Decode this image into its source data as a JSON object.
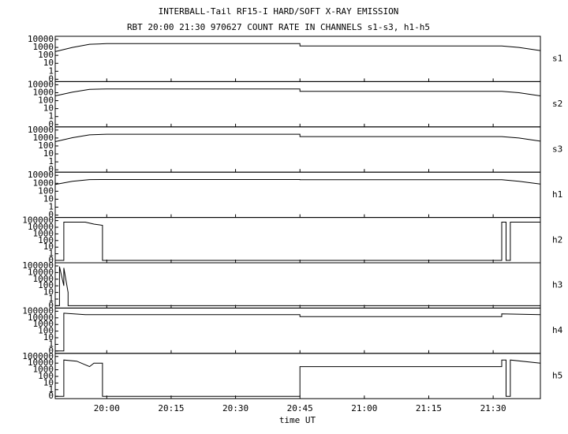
{
  "chart_data": {
    "type": "line",
    "title": "INTERBALL-Tail RF15-I HARD/SOFT X-RAY EMISSION",
    "subtitle": "RBT 20:00 21:30 970627  COUNT RATE IN CHANNELS s1-s3, h1-h5",
    "xlabel": "time UT",
    "xlim": [
      "19:48",
      "21:41"
    ],
    "xticks": [
      "20:00",
      "20:15",
      "20:30",
      "20:45",
      "21:00",
      "21:15",
      "21:30"
    ],
    "yscale": "log",
    "color": "#000000",
    "panels": [
      {
        "name": "s1",
        "ylim": [
          0,
          10000
        ],
        "yticks": [
          0,
          1,
          10,
          100,
          1000,
          10000
        ],
        "x": [
          "19:48",
          "19:52",
          "19:56",
          "20:00",
          "20:45",
          "20:45",
          "21:32",
          "21:36",
          "21:41"
        ],
        "values": [
          300,
          1000,
          2500,
          3000,
          3000,
          1500,
          1500,
          1000,
          400
        ]
      },
      {
        "name": "s2",
        "ylim": [
          0,
          10000
        ],
        "yticks": [
          0,
          1,
          10,
          100,
          1000,
          10000
        ],
        "x": [
          "19:48",
          "19:52",
          "19:56",
          "20:00",
          "20:45",
          "20:45",
          "21:32",
          "21:36",
          "21:41"
        ],
        "values": [
          400,
          1200,
          2600,
          3000,
          3000,
          1500,
          1500,
          1000,
          400
        ]
      },
      {
        "name": "s3",
        "ylim": [
          0,
          10000
        ],
        "yticks": [
          0,
          1,
          10,
          100,
          1000,
          10000
        ],
        "x": [
          "19:48",
          "19:52",
          "19:56",
          "20:00",
          "20:45",
          "20:45",
          "21:32",
          "21:36",
          "21:41"
        ],
        "values": [
          350,
          1100,
          2500,
          3000,
          3000,
          1500,
          1500,
          1000,
          400
        ]
      },
      {
        "name": "h1",
        "ylim": [
          0,
          10000
        ],
        "yticks": [
          0,
          1,
          10,
          100,
          1000,
          10000
        ],
        "x": [
          "19:48",
          "19:52",
          "19:56",
          "20:00",
          "20:45",
          "20:45",
          "21:32",
          "21:36",
          "21:41"
        ],
        "values": [
          700,
          1800,
          2900,
          3000,
          3000,
          2800,
          2800,
          1800,
          800
        ]
      },
      {
        "name": "h2",
        "ylim": [
          0,
          100000
        ],
        "yticks": [
          0,
          1,
          10,
          100,
          1000,
          10000,
          100000
        ],
        "x": [
          "19:48",
          "19:50",
          "19:50",
          "19:55",
          "19:57",
          "19:59",
          "19:59",
          "21:32",
          "21:32",
          "21:33",
          "21:33",
          "21:34",
          "21:34",
          "21:41"
        ],
        "values": [
          0,
          0,
          60000,
          60000,
          30000,
          20000,
          0,
          0,
          60000,
          60000,
          0,
          0,
          60000,
          60000
        ]
      },
      {
        "name": "h3",
        "ylim": [
          0,
          100000
        ],
        "yticks": [
          0,
          1,
          10,
          100,
          1000,
          10000,
          100000
        ],
        "x": [
          "19:48",
          "19:49",
          "19:49",
          "19:50",
          "19:50",
          "19:51",
          "19:51",
          "21:41"
        ],
        "values": [
          0,
          0,
          80000,
          100,
          50000,
          10,
          0,
          0
        ]
      },
      {
        "name": "h4",
        "ylim": [
          0,
          100000
        ],
        "yticks": [
          0,
          1,
          10,
          100,
          1000,
          10000,
          100000
        ],
        "x": [
          "19:48",
          "19:50",
          "19:50",
          "19:55",
          "20:45",
          "20:45",
          "21:32",
          "21:32",
          "21:41"
        ],
        "values": [
          0,
          0,
          50000,
          30000,
          30000,
          15000,
          15000,
          40000,
          30000
        ]
      },
      {
        "name": "h5",
        "ylim": [
          0,
          100000
        ],
        "yticks": [
          0,
          1,
          10,
          100,
          1000,
          10000,
          100000
        ],
        "x": [
          "19:48",
          "19:50",
          "19:50",
          "19:53",
          "19:56",
          "19:57",
          "19:59",
          "19:59",
          "20:45",
          "20:45",
          "21:32",
          "21:32",
          "21:33",
          "21:33",
          "21:34",
          "21:34",
          "21:41"
        ],
        "values": [
          0,
          0,
          30000,
          20000,
          3000,
          10000,
          10000,
          0,
          0,
          3000,
          3000,
          30000,
          30000,
          0,
          0,
          30000,
          10000
        ]
      }
    ]
  }
}
